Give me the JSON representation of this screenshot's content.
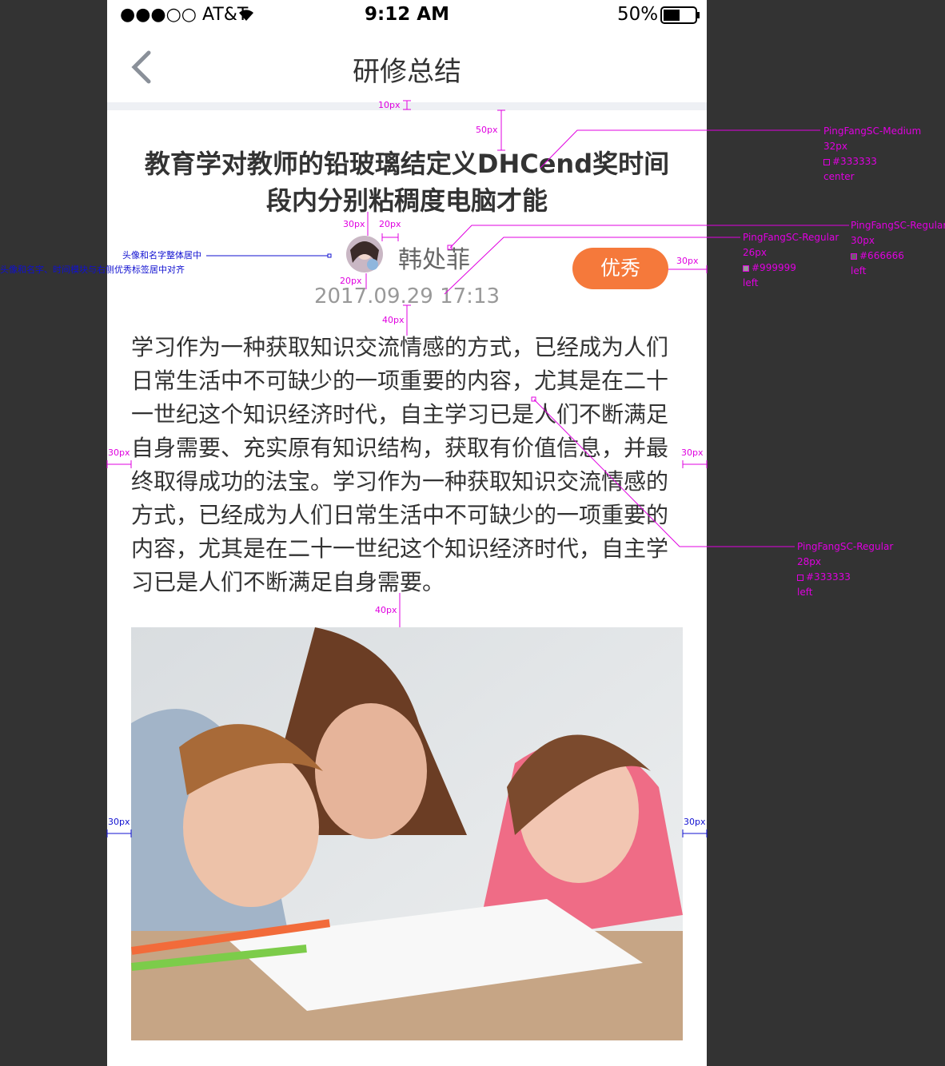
{
  "status_bar": {
    "carrier": "●●●○○ AT&T",
    "time": "9:12 AM",
    "battery": "50%"
  },
  "nav": {
    "title": "研修总结"
  },
  "article": {
    "title": "教育学对教师的铅玻璃结定义DHCend奖时间段内分别粘稠度电脑才能",
    "author": "韩处菲",
    "date": "2017.09.29 17:13",
    "badge": "优秀",
    "body": "学习作为一种获取知识交流情感的方式，已经成为人们日常生活中不可缺少的一项重要的内容，尤其是在二十一世纪这个知识经济时代，自主学习已是人们不断满足自身需要、充实原有知识结构，获取有价值信息，并最终取得成功的法宝。学习作为一种获取知识交流情感的方式，已经成为人们日常生活中不可缺少的一项重要的内容，尤其是在二十一世纪这个知识经济时代，自主学习已是人们不断满足自身需要。"
  },
  "annotations": {
    "spacings": [
      "10px",
      "50px",
      "30px",
      "20px",
      "30px",
      "20px",
      "40px",
      "30px",
      "30px",
      "40px",
      "30px",
      "30px"
    ],
    "specs": [
      [
        "PingFangSC-Medium",
        "32px",
        "#333333",
        "center"
      ],
      [
        "PingFangSC-Regular",
        "30px",
        "#666666",
        "left"
      ],
      [
        "PingFangSC-Regular",
        "26px",
        "#999999",
        "left"
      ],
      [
        "PingFangSC-Regular",
        "28px",
        "#333333",
        "left"
      ]
    ],
    "notes": [
      "头像和名字整体居中",
      "头像和名字、时间模块与右侧优秀标签居中对齐"
    ]
  }
}
